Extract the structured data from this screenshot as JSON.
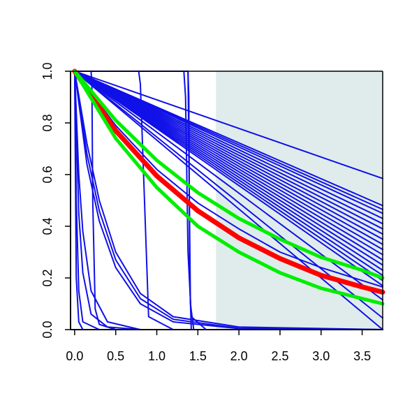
{
  "chart_data": {
    "type": "line",
    "title": "",
    "xlabel": "",
    "ylabel": "",
    "xlim": [
      -0.05,
      3.75
    ],
    "ylim": [
      0.0,
      1.0
    ],
    "x_ticks": [
      0.0,
      0.5,
      1.0,
      1.5,
      2.0,
      2.5,
      3.0,
      3.5
    ],
    "x_tick_labels": [
      "0.0",
      "0.5",
      "1.0",
      "1.5",
      "2.0",
      "2.5",
      "3.0",
      "3.5"
    ],
    "y_ticks": [
      0.0,
      0.2,
      0.4,
      0.6,
      0.8,
      1.0
    ],
    "y_tick_labels": [
      "0.0",
      "0.2",
      "0.4",
      "0.6",
      "0.8",
      "1.0"
    ],
    "grid": false,
    "legend": "none",
    "shaded_region": {
      "x_from": 1.72,
      "x_to": 3.75,
      "color": "#e0ecec"
    },
    "colors": {
      "series": "#1010e8",
      "highlight": "#ff0000",
      "band": "#00ee00",
      "axis": "#000000"
    },
    "series": [
      {
        "x": [
          0,
          3.75
        ],
        "y": [
          1.0,
          0.585
        ],
        "color": "#1010e8"
      },
      {
        "x": [
          0,
          3.75
        ],
        "y": [
          1.0,
          0.48
        ],
        "color": "#1010e8"
      },
      {
        "x": [
          0,
          3.75
        ],
        "y": [
          1.0,
          0.465
        ],
        "color": "#1010e8"
      },
      {
        "x": [
          0,
          3.75
        ],
        "y": [
          1.0,
          0.45
        ],
        "color": "#1010e8"
      },
      {
        "x": [
          0,
          3.75
        ],
        "y": [
          1.0,
          0.43
        ],
        "color": "#1010e8"
      },
      {
        "x": [
          0,
          3.75
        ],
        "y": [
          1.0,
          0.41
        ],
        "color": "#1010e8"
      },
      {
        "x": [
          0,
          3.75
        ],
        "y": [
          1.0,
          0.39
        ],
        "color": "#1010e8"
      },
      {
        "x": [
          0,
          3.75
        ],
        "y": [
          1.0,
          0.37
        ],
        "color": "#1010e8"
      },
      {
        "x": [
          0,
          3.75
        ],
        "y": [
          1.0,
          0.35
        ],
        "color": "#1010e8"
      },
      {
        "x": [
          0,
          3.75
        ],
        "y": [
          1.0,
          0.33
        ],
        "color": "#1010e8"
      },
      {
        "x": [
          0,
          3.75
        ],
        "y": [
          1.0,
          0.31
        ],
        "color": "#1010e8"
      },
      {
        "x": [
          0,
          3.75
        ],
        "y": [
          1.0,
          0.29
        ],
        "color": "#1010e8"
      },
      {
        "x": [
          0,
          3.75
        ],
        "y": [
          1.0,
          0.27
        ],
        "color": "#1010e8"
      },
      {
        "x": [
          0,
          3.75
        ],
        "y": [
          1.0,
          0.25
        ],
        "color": "#1010e8"
      },
      {
        "x": [
          0,
          3.75
        ],
        "y": [
          1.0,
          0.23
        ],
        "color": "#1010e8"
      },
      {
        "x": [
          0,
          3.75
        ],
        "y": [
          1.0,
          0.21
        ],
        "color": "#1010e8"
      },
      {
        "x": [
          0,
          3.75
        ],
        "y": [
          1.0,
          0.19
        ],
        "color": "#1010e8"
      },
      {
        "x": [
          0,
          3.75
        ],
        "y": [
          1.0,
          0.17
        ],
        "color": "#1010e8"
      },
      {
        "x": [
          0,
          3.75
        ],
        "y": [
          1.0,
          0.115
        ],
        "color": "#1010e8"
      },
      {
        "x": [
          0,
          3.75
        ],
        "y": [
          1.0,
          0.045
        ],
        "color": "#1010e8"
      },
      {
        "x": [
          0,
          3.75
        ],
        "y": [
          1.0,
          0.0
        ],
        "color": "#1010e8"
      },
      {
        "x": [
          0,
          0.15,
          0.3,
          0.5,
          0.8,
          1.2,
          2.0,
          3.75
        ],
        "y": [
          1.0,
          0.72,
          0.5,
          0.3,
          0.14,
          0.05,
          0.01,
          0.0
        ],
        "color": "#1010e8"
      },
      {
        "x": [
          0,
          0.15,
          0.3,
          0.5,
          0.8,
          1.2,
          2.0,
          3.75
        ],
        "y": [
          1.0,
          0.68,
          0.46,
          0.27,
          0.12,
          0.04,
          0.005,
          0.0
        ],
        "color": "#1010e8"
      },
      {
        "x": [
          0,
          0.15,
          0.3,
          0.5,
          0.8,
          1.2,
          2.0,
          3.75
        ],
        "y": [
          1.0,
          0.64,
          0.42,
          0.24,
          0.1,
          0.03,
          0.004,
          0.0
        ],
        "color": "#1010e8"
      },
      {
        "x": [
          0,
          0.05,
          0.1,
          0.2,
          0.4,
          0.8,
          3.75
        ],
        "y": [
          1.0,
          0.6,
          0.38,
          0.15,
          0.03,
          0.0,
          0.0
        ],
        "color": "#1010e8"
      },
      {
        "x": [
          0,
          0.05,
          0.1,
          0.2,
          0.4,
          0.8,
          3.75
        ],
        "y": [
          1.0,
          0.45,
          0.22,
          0.06,
          0.01,
          0.0,
          0.0
        ],
        "color": "#1010e8"
      },
      {
        "x": [
          0,
          0.02,
          0.05,
          0.1,
          0.3,
          3.75
        ],
        "y": [
          1.0,
          0.5,
          0.15,
          0.03,
          0.0,
          0.0
        ],
        "color": "#1010e8"
      },
      {
        "x": [
          0,
          0.02,
          0.05,
          0.1,
          3.75
        ],
        "y": [
          1.0,
          0.2,
          0.03,
          0.0,
          0.0
        ],
        "color": "#1010e8"
      },
      {
        "x": [
          0,
          0.2,
          0.21,
          0.22,
          0.25,
          0.3,
          0.5,
          3.75
        ],
        "y": [
          1.0,
          1.0,
          0.95,
          0.5,
          0.08,
          0.02,
          0.0,
          0.0
        ],
        "color": "#1010e8"
      },
      {
        "x": [
          0.2,
          0.78,
          0.8,
          0.85,
          0.9,
          1.2,
          3.75
        ],
        "y": [
          1.0,
          1.0,
          0.95,
          0.5,
          0.05,
          0.0,
          0.0
        ],
        "color": "#1010e8"
      },
      {
        "x": [
          0.78,
          1.33,
          1.35,
          1.38,
          1.42,
          1.6,
          3.75
        ],
        "y": [
          1.0,
          1.0,
          0.9,
          0.3,
          0.05,
          0.0,
          0.0
        ],
        "color": "#1010e8"
      },
      {
        "x": [
          0.78,
          1.38,
          1.39,
          1.41,
          1.45,
          3.75
        ],
        "y": [
          1.0,
          1.0,
          0.7,
          0.1,
          0.0,
          0.0
        ],
        "color": "#1010e8"
      },
      {
        "x": [
          0,
          1.38,
          1.39,
          1.4,
          1.42,
          3.75
        ],
        "y": [
          1.0,
          1.0,
          0.9,
          0.2,
          0.0,
          0.0
        ],
        "color": "#1010e8"
      },
      {
        "x": [
          0,
          0.5,
          1.0,
          1.5,
          2.0,
          2.5,
          3.0,
          3.5,
          3.75
        ],
        "y": [
          1.0,
          0.79,
          0.62,
          0.49,
          0.39,
          0.3,
          0.24,
          0.19,
          0.165
        ],
        "color": "#1010e8"
      },
      {
        "x": [
          0,
          0.5,
          1.0,
          1.5,
          2.0,
          2.5,
          3.0,
          3.5,
          3.75
        ],
        "y": [
          1.0,
          0.77,
          0.595,
          0.46,
          0.355,
          0.275,
          0.21,
          0.165,
          0.145
        ],
        "color": "#ff0000"
      },
      {
        "x": [
          0,
          0.5,
          1.0,
          1.5,
          2.0,
          2.5,
          3.0,
          3.5,
          3.75
        ],
        "y": [
          1.0,
          0.81,
          0.655,
          0.53,
          0.43,
          0.35,
          0.28,
          0.23,
          0.2
        ],
        "color": "#00ee00"
      },
      {
        "x": [
          0,
          0.5,
          1.0,
          1.5,
          2.0,
          2.5,
          3.0,
          3.5,
          3.75
        ],
        "y": [
          1.0,
          0.74,
          0.55,
          0.4,
          0.3,
          0.22,
          0.16,
          0.12,
          0.1
        ],
        "color": "#00ee00"
      }
    ]
  }
}
